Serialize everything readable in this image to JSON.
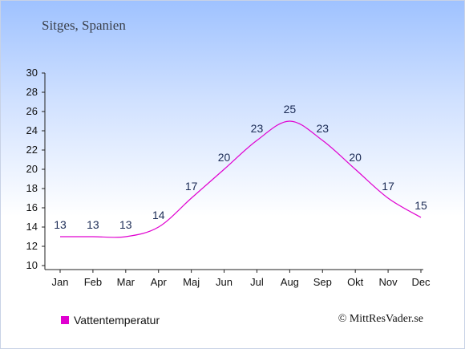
{
  "chart_data": {
    "type": "line",
    "title": "Sitges, Spanien",
    "categories": [
      "Jan",
      "Feb",
      "Mar",
      "Apr",
      "Maj",
      "Jun",
      "Jul",
      "Aug",
      "Sep",
      "Okt",
      "Nov",
      "Dec"
    ],
    "series": [
      {
        "name": "Vattentemperatur",
        "values": [
          13,
          13,
          13,
          14,
          17,
          20,
          23,
          25,
          23,
          20,
          17,
          15
        ],
        "color": "#e000d0"
      }
    ],
    "ylim": [
      10,
      30
    ],
    "yticks": [
      10,
      12,
      14,
      16,
      18,
      20,
      22,
      24,
      26,
      28,
      30
    ],
    "grid": false,
    "legend_position": "bottom-left"
  },
  "legend": {
    "label": "Vattentemperatur",
    "color": "#e000d0"
  },
  "credit": "© MittResVader.se"
}
